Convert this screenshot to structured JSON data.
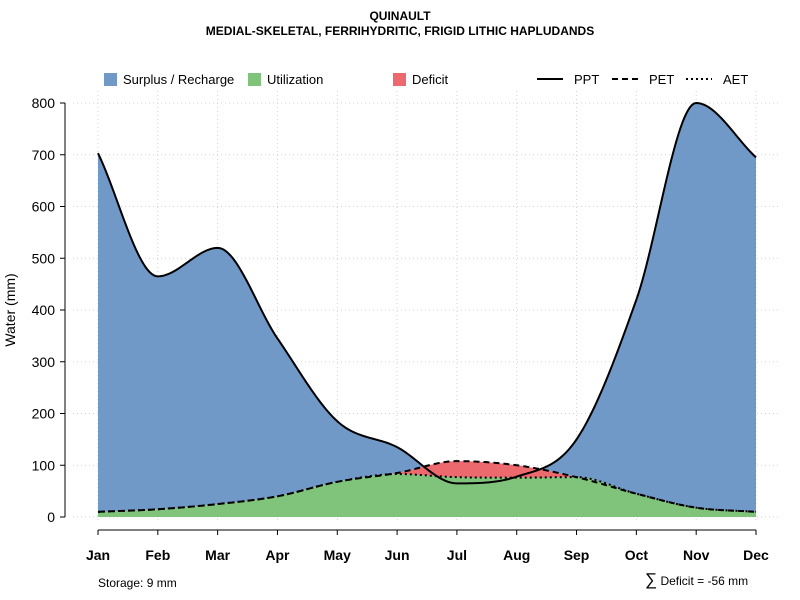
{
  "header": {
    "title_line1": "QUINAULT",
    "title_line2": "MEDIAL-SKELETAL, FERRIHYDRITIC, FRIGID LITHIC HAPLUDANDS"
  },
  "footer": {
    "storage": "Storage: 9 mm",
    "deficit_symbol": "∑",
    "deficit": "Deficit = -56 mm"
  },
  "colors": {
    "surplus": "#7199C8",
    "utilization": "#80C47C",
    "deficit": "#EC6A6D",
    "grid": "#D3D3D3"
  },
  "legend": {
    "fills": [
      {
        "key": "surplus",
        "label": "Surplus / Recharge"
      },
      {
        "key": "utilization",
        "label": "Utilization"
      },
      {
        "key": "deficit",
        "label": "Deficit"
      }
    ],
    "lines": [
      {
        "key": "ppt",
        "label": "PPT",
        "dash": "none"
      },
      {
        "key": "pet",
        "label": "PET",
        "dash": "6,4"
      },
      {
        "key": "aet",
        "label": "AET",
        "dash": "2,3"
      }
    ]
  },
  "chart_data": {
    "type": "area",
    "title": "QUINAULT",
    "subtitle": "MEDIAL-SKELETAL, FERRIHYDRITIC, FRIGID LITHIC HAPLUDANDS",
    "xlabel": "",
    "ylabel": "Water (mm)",
    "ylim": [
      0,
      800
    ],
    "yticks": [
      0,
      100,
      200,
      300,
      400,
      500,
      600,
      700,
      800
    ],
    "grid": true,
    "legend_position": "top",
    "categories": [
      "Jan",
      "Feb",
      "Mar",
      "Apr",
      "May",
      "Jun",
      "Jul",
      "Aug",
      "Sep",
      "Oct",
      "Nov",
      "Dec"
    ],
    "series": [
      {
        "name": "PPT",
        "values": [
          703,
          465,
          520,
          345,
          185,
          135,
          65,
          78,
          150,
          420,
          800,
          695
        ]
      },
      {
        "name": "PET",
        "values": [
          10,
          15,
          25,
          40,
          68,
          85,
          108,
          100,
          77,
          45,
          18,
          10
        ]
      },
      {
        "name": "AET",
        "values": [
          10,
          15,
          25,
          40,
          68,
          83,
          77,
          76,
          77,
          45,
          18,
          10
        ]
      }
    ]
  }
}
